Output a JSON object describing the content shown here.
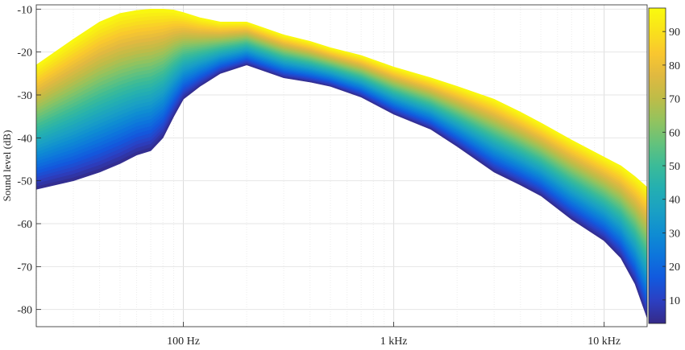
{
  "chart_data": {
    "type": "area",
    "title": "",
    "xlabel": "",
    "ylabel": "Sound level (dB)",
    "x_scale": "log",
    "xlim": [
      20,
      16000
    ],
    "ylim": [
      -84,
      -9
    ],
    "grid": true,
    "x_ticks": [
      {
        "value": 100,
        "label": "100 Hz"
      },
      {
        "value": 1000,
        "label": "1 kHz"
      },
      {
        "value": 10000,
        "label": "10 kHz"
      }
    ],
    "y_ticks": [
      -10,
      -20,
      -30,
      -40,
      -50,
      -60,
      -70,
      -80
    ],
    "envelope": {
      "x": [
        20,
        30,
        40,
        50,
        60,
        70,
        80,
        90,
        100,
        120,
        150,
        200,
        300,
        400,
        500,
        700,
        1000,
        1500,
        2000,
        3000,
        4000,
        5000,
        7000,
        10000,
        12000,
        14000,
        16000
      ],
      "upper": [
        -23,
        -17,
        -13,
        -11,
        -10.3,
        -10,
        -10,
        -10.2,
        -10.8,
        -12,
        -13,
        -13,
        -16,
        -17.5,
        -19,
        -20.8,
        -23.5,
        -26,
        -28,
        -31,
        -34,
        -36.5,
        -40.5,
        -44.5,
        -46.5,
        -49,
        -51.5
      ],
      "lower": [
        -52,
        -50,
        -48,
        -46,
        -44,
        -43,
        -40,
        -35,
        -31,
        -28,
        -25,
        -23,
        -26,
        -27,
        -28,
        -30.5,
        -34.5,
        -38,
        -42,
        -48,
        -51,
        -53.5,
        -59,
        -64,
        -68,
        -74,
        -82
      ]
    },
    "colorbar": {
      "colormap": "parula",
      "min": 3,
      "max": 97,
      "ticks": [
        10,
        20,
        30,
        40,
        50,
        60,
        70,
        80,
        90
      ]
    }
  }
}
